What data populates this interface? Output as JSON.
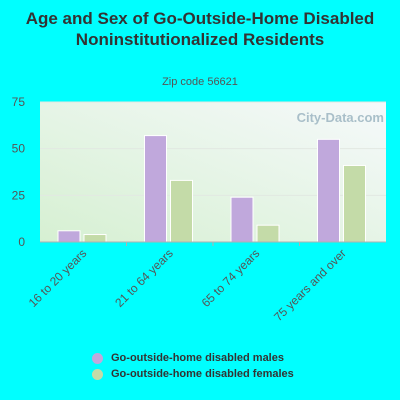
{
  "chart_data": {
    "type": "bar",
    "title": "Age and Sex of Go-Outside-Home Disabled Noninstitutionalized Residents",
    "subtitle": "Zip code 56621",
    "categories": [
      "16 to 20 years",
      "21 to 64 years",
      "65 to 74 years",
      "75 years and over"
    ],
    "series": [
      {
        "name": "Go-outside-home disabled males",
        "color": "#c0a8dc",
        "values": [
          6,
          57,
          24,
          55
        ]
      },
      {
        "name": "Go-outside-home disabled females",
        "color": "#c4dba8",
        "values": [
          4,
          33,
          9,
          41
        ]
      }
    ],
    "yticks": [
      0,
      25,
      50,
      75
    ],
    "ylim": [
      0,
      75
    ],
    "xlabel": "",
    "ylabel": "",
    "grid": true,
    "legend_position": "bottom"
  },
  "watermark": "City-Data.com"
}
